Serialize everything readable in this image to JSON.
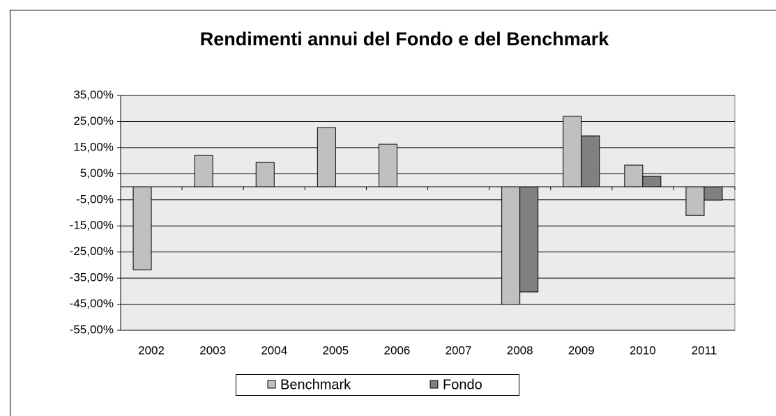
{
  "chart_data": {
    "type": "bar",
    "title": "Rendimenti annui del Fondo e del Benchmark",
    "categories": [
      "2002",
      "2003",
      "2004",
      "2005",
      "2006",
      "2007",
      "2008",
      "2009",
      "2010",
      "2011"
    ],
    "series": [
      {
        "name": "Benchmark",
        "color": "#c0c0c0",
        "values": [
          -31.8,
          12.0,
          9.3,
          22.7,
          16.3,
          null,
          -45.1,
          27.0,
          8.3,
          -11.0
        ]
      },
      {
        "name": "Fondo",
        "color": "#808080",
        "values": [
          null,
          null,
          null,
          null,
          null,
          null,
          -40.3,
          19.5,
          4.0,
          -5.1
        ]
      }
    ],
    "ylim": [
      -55,
      35
    ],
    "yticks": [
      {
        "value": -55,
        "label": "-55,00%"
      },
      {
        "value": -45,
        "label": "-45,00%"
      },
      {
        "value": -35,
        "label": "-35,00%"
      },
      {
        "value": -25,
        "label": "-25,00%"
      },
      {
        "value": -15,
        "label": "-15,00%"
      },
      {
        "value": -5,
        "label": "-5,00%"
      },
      {
        "value": 5,
        "label": "5,00%"
      },
      {
        "value": 15,
        "label": "15,00%"
      },
      {
        "value": 25,
        "label": "25,00%"
      },
      {
        "value": 35,
        "label": "35,00%"
      }
    ],
    "grid": true
  }
}
